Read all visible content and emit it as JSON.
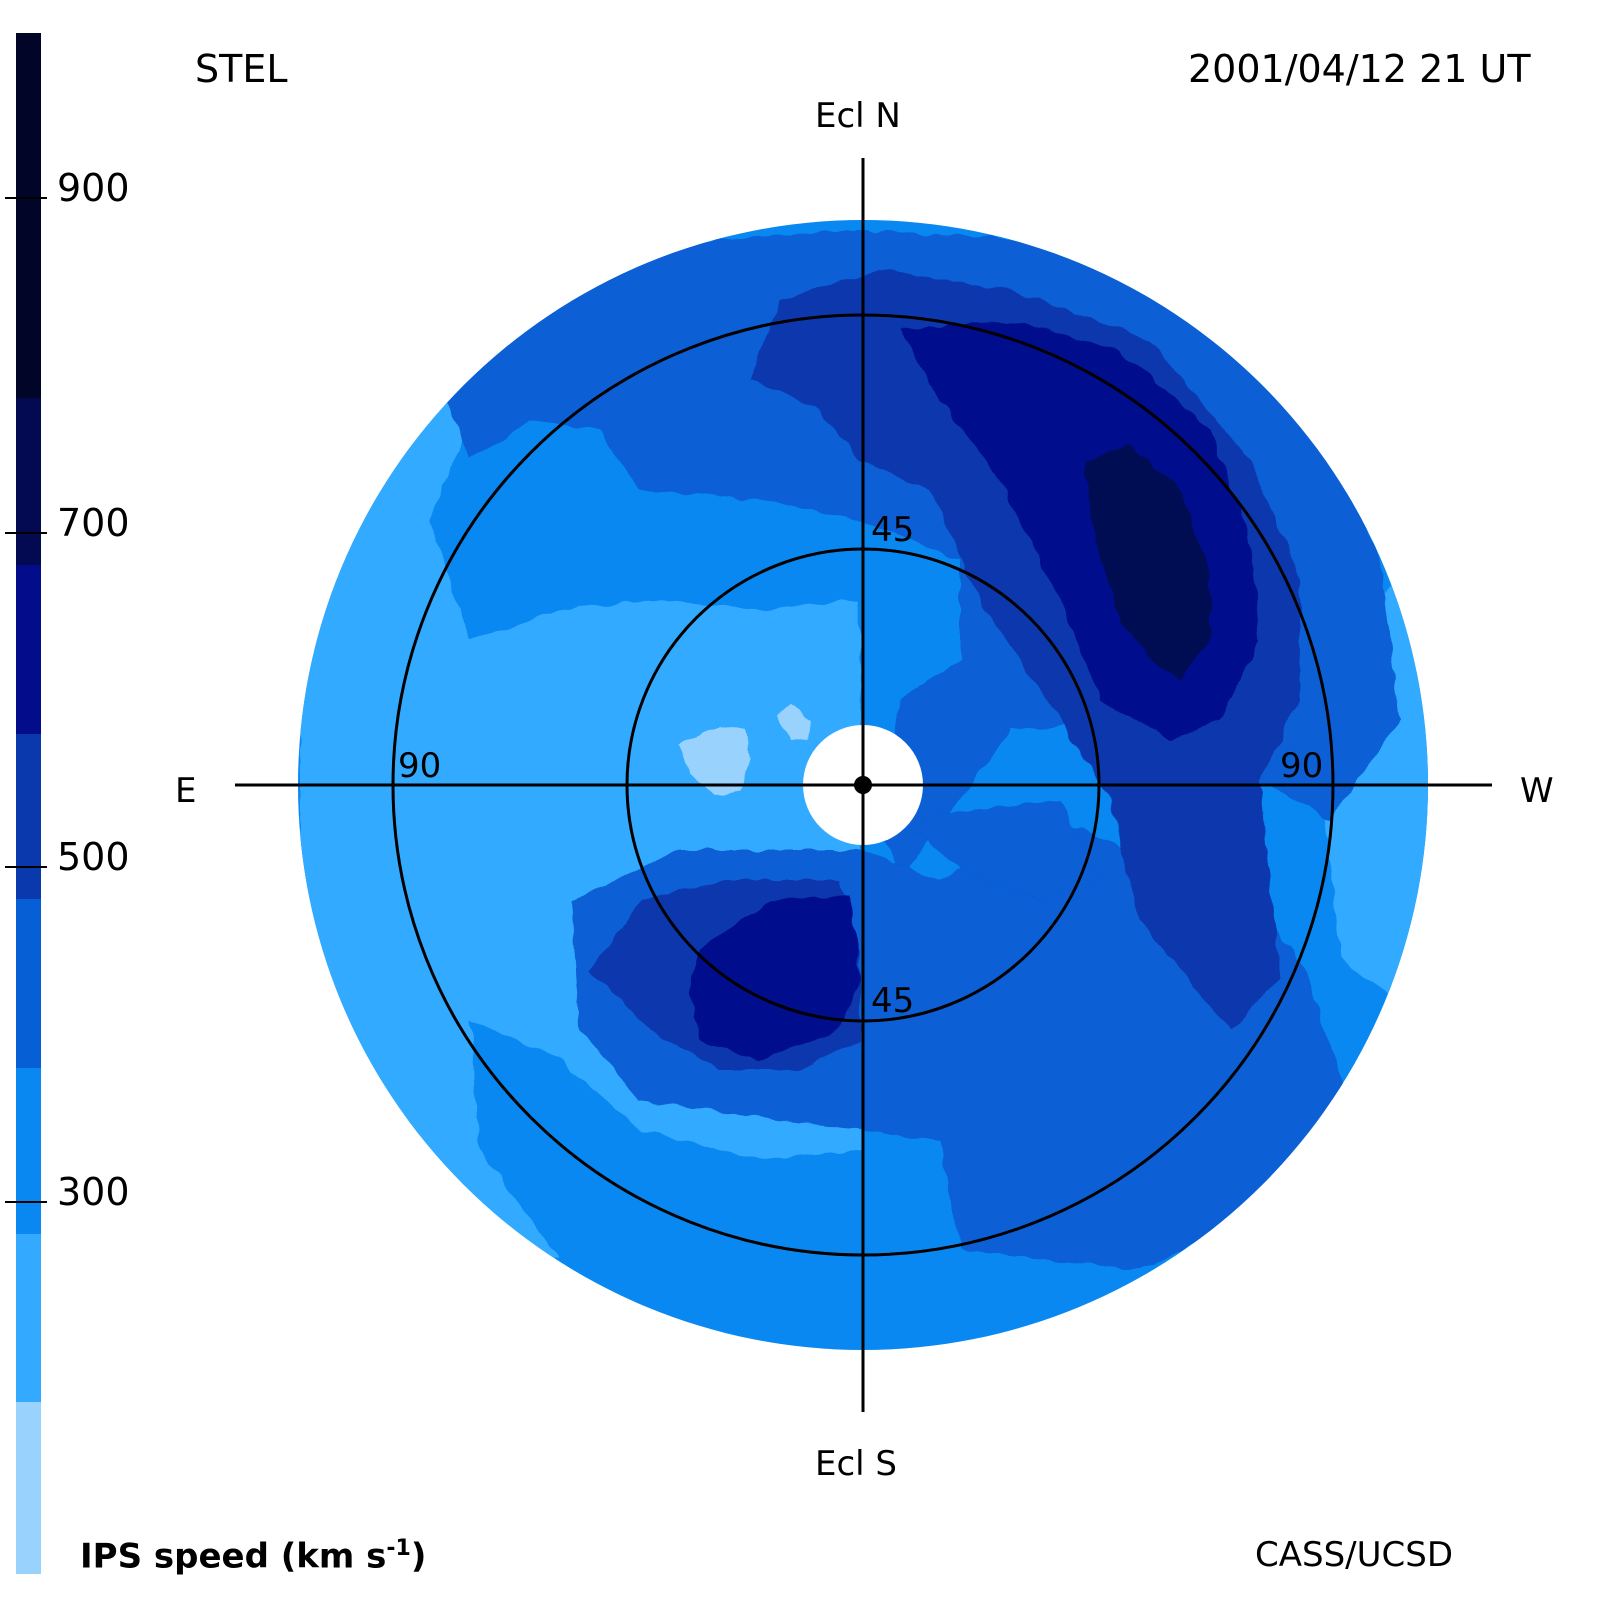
{
  "header": {
    "station": "STEL",
    "datetime": "2001/04/12 21 UT"
  },
  "footer": {
    "colorbar_title_prefix": "IPS speed (km s",
    "colorbar_title_exp": "-1",
    "colorbar_title_suffix": ")",
    "credit": "CASS/UCSD"
  },
  "compass": {
    "north": "Ecl N",
    "south": "Ecl S",
    "east": "E",
    "west": "W"
  },
  "elongation_rings": {
    "inner_label_top": "45",
    "inner_label_bottom": "45",
    "outer_label_left": "90",
    "outer_label_right": "90",
    "inner_deg": 45,
    "outer_deg": 90
  },
  "colorbar": {
    "tick_labels": [
      "900",
      "700",
      "500",
      "300"
    ],
    "levels": [
      {
        "min": 200,
        "max": 300,
        "color": "#99d3fd"
      },
      {
        "min": 300,
        "max": 400,
        "color": "#33aaff"
      },
      {
        "min": 400,
        "max": 500,
        "color": "#0a88f2"
      },
      {
        "min": 500,
        "max": 600,
        "color": "#075fd6"
      },
      {
        "min": 600,
        "max": 700,
        "color": "#0a38ad"
      },
      {
        "min": 700,
        "max": 800,
        "color": "#030d8c"
      },
      {
        "min": 800,
        "max": 900,
        "color": "#030a52"
      },
      {
        "min": 900,
        "max": 1000,
        "color": "#010528"
      }
    ]
  },
  "colors": {
    "outer_disk": "#0a88f2",
    "background": "#ffffff",
    "lines": "#000000"
  }
}
